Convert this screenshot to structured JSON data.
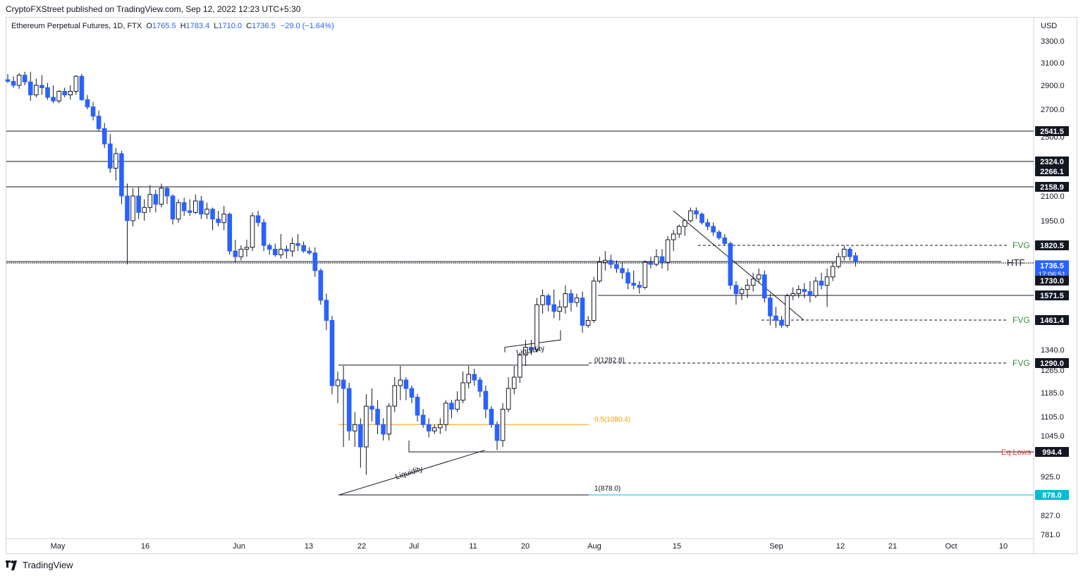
{
  "publisher": {
    "text": "CryptoFXStreet published on TradingView.com, Sep 12, 2022 12:23 UTC+5:30"
  },
  "legend": {
    "symbol": "Ethereum Perpetual Futures, 1D, FTX",
    "o_label": "O",
    "o_value": "1765.5",
    "h_label": "H",
    "h_value": "1783.4",
    "l_label": "L",
    "l_value": "1710.0",
    "c_label": "C",
    "c_value": "1736.5",
    "change": "−29.0 (−1.64%)"
  },
  "footer": {
    "brand": "TradingView",
    "logo_icon": "tradingview-logo-icon"
  },
  "colors": {
    "up": "#ffffff",
    "down": "#2962ff",
    "wick": "#131722",
    "fvg": "#388e3c",
    "eq_lows": "#e53935",
    "fib_mid": "#ff9800",
    "fib_low": "#00bcd4"
  },
  "chart_data": {
    "type": "candlestick",
    "currency": "USD",
    "y_axis_ticks": [
      "3300.0",
      "3100.0",
      "2900.0",
      "2700.0",
      "2500.0",
      "2100.0",
      "1950.0",
      "1340.0",
      "1265.0",
      "1185.0",
      "1105.0",
      "1045.0",
      "925.0",
      "827.0",
      "781.0"
    ],
    "x_axis_ticks": [
      "May",
      "16",
      "Jun",
      "13",
      "22",
      "Jul",
      "11",
      "20",
      "Aug",
      "15",
      "Sep",
      "12",
      "21",
      "Oct",
      "10"
    ],
    "price_tags": [
      {
        "label": "2541.5",
        "style": "black"
      },
      {
        "label": "2324.0",
        "style": "black"
      },
      {
        "label": "2266.1",
        "style": "black"
      },
      {
        "label": "2158.9",
        "style": "black"
      },
      {
        "label": "1820.5",
        "style": "black"
      },
      {
        "label": "1736.5",
        "sub": "17:06:51",
        "style": "blue"
      },
      {
        "label": "1730.0",
        "style": "black"
      },
      {
        "label": "1571.5",
        "style": "black"
      },
      {
        "label": "1461.4",
        "style": "black"
      },
      {
        "label": "1290.0",
        "style": "black"
      },
      {
        "label": "994.4",
        "style": "black"
      },
      {
        "label": "878.0",
        "style": "cyan"
      }
    ],
    "levels": [
      2541.5,
      2324.0,
      2158.9,
      1820.5,
      1730.0,
      1571.5,
      1461.4,
      1290.0,
      994.4,
      878.0
    ],
    "annotations": [
      {
        "text": "FVG",
        "color": "fvg",
        "level": 1820.5
      },
      {
        "text": "FVG",
        "color": "fvg",
        "level": 1461.4
      },
      {
        "text": "FVG",
        "color": "fvg",
        "level": 1290.0
      },
      {
        "text": "HTF",
        "color": "black",
        "level": 1730.0
      },
      {
        "text": "Eq Lows",
        "color": "eq_lows",
        "level": 994.4
      },
      {
        "text": "Liquidity",
        "color": "black"
      },
      {
        "text": "Liquidity",
        "color": "black"
      }
    ],
    "fib_levels": [
      {
        "label": "0(1282.8)",
        "value": 1282.8
      },
      {
        "label": "0.5(1080.4)",
        "value": 1080.4
      },
      {
        "label": "1(878.0)",
        "value": 878.0
      }
    ],
    "candles": [
      [
        2950,
        3000,
        2920,
        2935
      ],
      [
        2935,
        2980,
        2880,
        2900
      ],
      [
        2900,
        3010,
        2870,
        2990
      ],
      [
        2990,
        3020,
        2900,
        2930
      ],
      [
        2930,
        3020,
        2770,
        2820
      ],
      [
        2820,
        2960,
        2800,
        2900
      ],
      [
        2900,
        2990,
        2820,
        2880
      ],
      [
        2880,
        2920,
        2780,
        2800
      ],
      [
        2800,
        2900,
        2750,
        2770
      ],
      [
        2770,
        2860,
        2750,
        2850
      ],
      [
        2850,
        2880,
        2800,
        2820
      ],
      [
        2820,
        2900,
        2780,
        2850
      ],
      [
        2850,
        2990,
        2820,
        2980
      ],
      [
        2980,
        3000,
        2770,
        2780
      ],
      [
        2780,
        2820,
        2700,
        2720
      ],
      [
        2720,
        2760,
        2620,
        2650
      ],
      [
        2650,
        2690,
        2540,
        2560
      ],
      [
        2560,
        2600,
        2420,
        2450
      ],
      [
        2450,
        2520,
        2250,
        2280
      ],
      [
        2280,
        2420,
        2200,
        2380
      ],
      [
        2380,
        2400,
        2050,
        2100
      ],
      [
        2100,
        2180,
        1720,
        1950
      ],
      [
        1950,
        2150,
        1920,
        2100
      ],
      [
        2100,
        2160,
        1960,
        2000
      ],
      [
        2000,
        2080,
        1950,
        2030
      ],
      [
        2030,
        2170,
        2000,
        2110
      ],
      [
        2110,
        2140,
        2000,
        2050
      ],
      [
        2050,
        2180,
        2030,
        2150
      ],
      [
        2150,
        2160,
        2050,
        2100
      ],
      [
        2100,
        2110,
        1930,
        1960
      ],
      [
        1960,
        2080,
        1940,
        2060
      ],
      [
        2060,
        2090,
        1980,
        2010
      ],
      [
        2010,
        2080,
        1980,
        2000
      ],
      [
        2000,
        2110,
        1990,
        2070
      ],
      [
        2070,
        2100,
        1960,
        1990
      ],
      [
        1990,
        2060,
        1960,
        2020
      ],
      [
        2020,
        2030,
        1900,
        1960
      ],
      [
        1960,
        2010,
        1920,
        1940
      ],
      [
        1940,
        2040,
        1900,
        1990
      ],
      [
        1990,
        2000,
        1770,
        1790
      ],
      [
        1790,
        1850,
        1730,
        1760
      ],
      [
        1760,
        1820,
        1740,
        1800
      ],
      [
        1800,
        1850,
        1760,
        1810
      ],
      [
        1810,
        2000,
        1790,
        1980
      ],
      [
        1980,
        2010,
        1920,
        1940
      ],
      [
        1940,
        1960,
        1790,
        1820
      ],
      [
        1820,
        1830,
        1770,
        1800
      ],
      [
        1800,
        1830,
        1760,
        1770
      ],
      [
        1770,
        1880,
        1750,
        1800
      ],
      [
        1800,
        1820,
        1750,
        1790
      ],
      [
        1790,
        1860,
        1760,
        1830
      ],
      [
        1830,
        1880,
        1790,
        1820
      ],
      [
        1820,
        1840,
        1780,
        1790
      ],
      [
        1790,
        1810,
        1770,
        1780
      ],
      [
        1780,
        1810,
        1660,
        1690
      ],
      [
        1690,
        1700,
        1530,
        1550
      ],
      [
        1550,
        1580,
        1420,
        1460
      ],
      [
        1460,
        1480,
        1180,
        1210
      ],
      [
        1210,
        1260,
        1150,
        1230
      ],
      [
        1230,
        1280,
        1010,
        1200
      ],
      [
        1200,
        1220,
        1030,
        1060
      ],
      [
        1060,
        1120,
        1010,
        1080
      ],
      [
        1080,
        1100,
        950,
        1010
      ],
      [
        1010,
        1180,
        930,
        1140
      ],
      [
        1140,
        1200,
        1090,
        1130
      ],
      [
        1130,
        1160,
        1050,
        1080
      ],
      [
        1080,
        1100,
        1030,
        1050
      ],
      [
        1050,
        1150,
        1030,
        1140
      ],
      [
        1140,
        1240,
        1120,
        1210
      ],
      [
        1210,
        1280,
        1160,
        1230
      ],
      [
        1230,
        1240,
        1160,
        1200
      ],
      [
        1200,
        1210,
        1150,
        1170
      ],
      [
        1170,
        1180,
        1090,
        1110
      ],
      [
        1110,
        1130,
        1070,
        1080
      ],
      [
        1080,
        1100,
        1040,
        1060
      ],
      [
        1060,
        1080,
        1050,
        1070
      ],
      [
        1070,
        1100,
        1050,
        1080
      ],
      [
        1080,
        1160,
        1060,
        1150
      ],
      [
        1150,
        1160,
        1100,
        1130
      ],
      [
        1130,
        1190,
        1120,
        1160
      ],
      [
        1160,
        1260,
        1150,
        1220
      ],
      [
        1220,
        1280,
        1200,
        1250
      ],
      [
        1250,
        1270,
        1210,
        1230
      ],
      [
        1230,
        1240,
        1170,
        1190
      ],
      [
        1190,
        1210,
        1100,
        1130
      ],
      [
        1130,
        1140,
        1070,
        1080
      ],
      [
        1080,
        1090,
        1000,
        1030
      ],
      [
        1030,
        1150,
        1010,
        1130
      ],
      [
        1130,
        1240,
        1120,
        1200
      ],
      [
        1200,
        1280,
        1180,
        1240
      ],
      [
        1240,
        1330,
        1220,
        1320
      ],
      [
        1320,
        1380,
        1280,
        1350
      ],
      [
        1350,
        1380,
        1320,
        1340
      ],
      [
        1340,
        1560,
        1330,
        1530
      ],
      [
        1530,
        1600,
        1490,
        1570
      ],
      [
        1570,
        1580,
        1500,
        1530
      ],
      [
        1530,
        1600,
        1470,
        1500
      ],
      [
        1500,
        1550,
        1460,
        1520
      ],
      [
        1520,
        1620,
        1490,
        1580
      ],
      [
        1580,
        1600,
        1500,
        1540
      ],
      [
        1540,
        1580,
        1520,
        1560
      ],
      [
        1560,
        1590,
        1410,
        1440
      ],
      [
        1440,
        1480,
        1430,
        1460
      ],
      [
        1460,
        1660,
        1450,
        1640
      ],
      [
        1640,
        1760,
        1630,
        1730
      ],
      [
        1730,
        1790,
        1690,
        1740
      ],
      [
        1740,
        1770,
        1700,
        1720
      ],
      [
        1720,
        1740,
        1680,
        1700
      ],
      [
        1700,
        1730,
        1650,
        1680
      ],
      [
        1680,
        1700,
        1600,
        1630
      ],
      [
        1630,
        1690,
        1600,
        1620
      ],
      [
        1620,
        1640,
        1580,
        1610
      ],
      [
        1610,
        1740,
        1600,
        1730
      ],
      [
        1730,
        1760,
        1700,
        1720
      ],
      [
        1720,
        1800,
        1710,
        1760
      ],
      [
        1760,
        1800,
        1700,
        1730
      ],
      [
        1730,
        1870,
        1690,
        1850
      ],
      [
        1850,
        1900,
        1790,
        1880
      ],
      [
        1880,
        1930,
        1860,
        1920
      ],
      [
        1920,
        1960,
        1870,
        1950
      ],
      [
        1950,
        2030,
        1940,
        2010
      ],
      [
        2010,
        2030,
        1960,
        1990
      ],
      [
        1990,
        2000,
        1930,
        1940
      ],
      [
        1940,
        1960,
        1900,
        1920
      ],
      [
        1920,
        1940,
        1870,
        1890
      ],
      [
        1890,
        1900,
        1850,
        1860
      ],
      [
        1860,
        1880,
        1820,
        1830
      ],
      [
        1830,
        1840,
        1600,
        1620
      ],
      [
        1620,
        1640,
        1530,
        1580
      ],
      [
        1580,
        1610,
        1550,
        1600
      ],
      [
        1600,
        1650,
        1560,
        1620
      ],
      [
        1620,
        1680,
        1590,
        1650
      ],
      [
        1650,
        1700,
        1630,
        1670
      ],
      [
        1670,
        1690,
        1540,
        1560
      ],
      [
        1560,
        1580,
        1440,
        1480
      ],
      [
        1480,
        1520,
        1430,
        1460
      ],
      [
        1460,
        1480,
        1430,
        1440
      ],
      [
        1440,
        1580,
        1430,
        1570
      ],
      [
        1570,
        1610,
        1550,
        1580
      ],
      [
        1580,
        1620,
        1560,
        1600
      ],
      [
        1600,
        1630,
        1560,
        1590
      ],
      [
        1590,
        1640,
        1540,
        1570
      ],
      [
        1570,
        1660,
        1560,
        1640
      ],
      [
        1640,
        1680,
        1600,
        1620
      ],
      [
        1620,
        1700,
        1520,
        1660
      ],
      [
        1660,
        1730,
        1640,
        1710
      ],
      [
        1710,
        1780,
        1700,
        1760
      ],
      [
        1760,
        1820,
        1740,
        1800
      ],
      [
        1800,
        1810,
        1740,
        1760
      ],
      [
        1765,
        1783,
        1710,
        1736
      ]
    ]
  }
}
